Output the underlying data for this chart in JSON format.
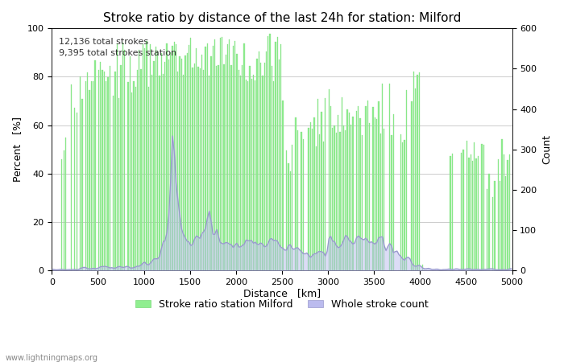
{
  "title": "Stroke ratio by distance of the last 24h for station: Milford",
  "xlabel": "Distance   [km]",
  "ylabel_left": "Percent   [%]",
  "ylabel_right": "Count",
  "annotation": "12,136 total strokes\n9,395 total strokes station",
  "xlim": [
    0,
    5000
  ],
  "ylim_left": [
    0,
    100
  ],
  "ylim_right": [
    0,
    600
  ],
  "bar_color": "#90ee90",
  "bar_edge_color": "#78d878",
  "line_color": "#9999cc",
  "line_fill_color": "#bbbbee",
  "legend_bar": "Stroke ratio station Milford",
  "legend_line": "Whole stroke count",
  "watermark": "www.lightningmaps.org",
  "title_fontsize": 11,
  "label_fontsize": 9,
  "tick_fontsize": 8,
  "annotation_fontsize": 8,
  "bg_color": "#ffffff",
  "grid_color": "#cccccc"
}
